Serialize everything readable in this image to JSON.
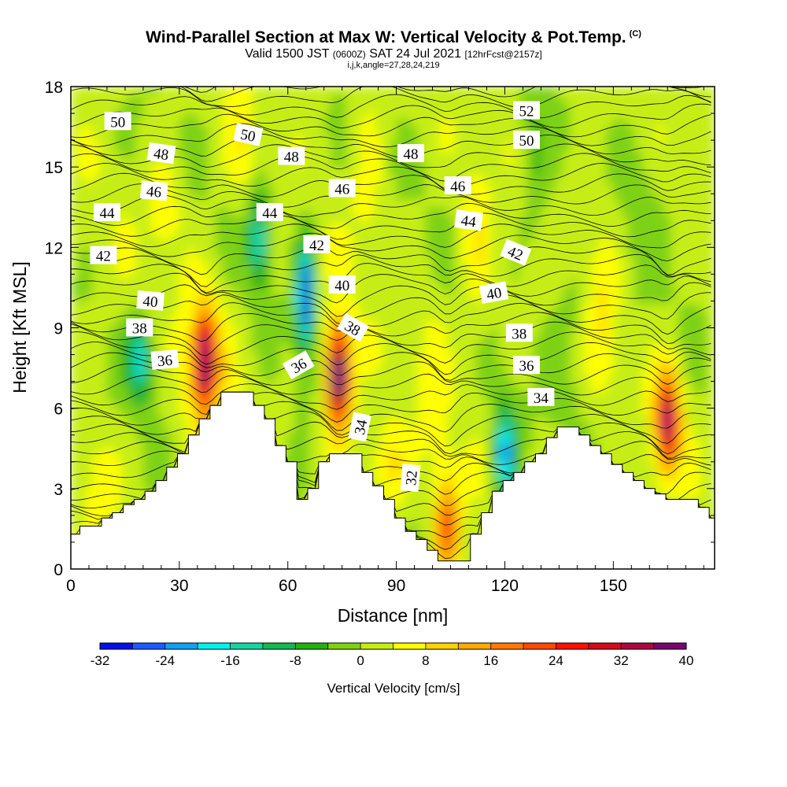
{
  "header": {
    "title": "Wind-Parallel Section at Max W: Vertical Velocity & Pot.Temp.",
    "copyright_tag": "(C)",
    "subtitle_valid": "Valid 1500 JST",
    "subtitle_utc": "(0600Z)",
    "subtitle_date": "SAT 24 Jul 2021",
    "subtitle_fcst": "[12hrFcst@2157z]",
    "subtitle_indices": "i,j,k,angle=27,28,24,219"
  },
  "chart_data": {
    "type": "heatmap",
    "title": "Wind-Parallel Section at Max W: Vertical Velocity & Pot.Temp.",
    "xlabel": "Distance [nm]",
    "ylabel": "Height [Kft MSL]",
    "xlim": [
      0,
      178
    ],
    "ylim": [
      0,
      18
    ],
    "xticks": [
      "0",
      "30",
      "60",
      "90",
      "120",
      "150"
    ],
    "xtick_values": [
      0,
      30,
      60,
      90,
      120,
      150
    ],
    "yticks": [
      "0",
      "3",
      "6",
      "9",
      "12",
      "15",
      "18"
    ],
    "ytick_values": [
      0,
      3,
      6,
      9,
      12,
      15,
      18
    ],
    "grid": false,
    "shaded_field": "Vertical Velocity [cm/s]",
    "contour_field": "Potential temperature",
    "contour_labels": [
      {
        "text": "50",
        "x": 13,
        "y": 16.7,
        "angle": 0
      },
      {
        "text": "48",
        "x": 25,
        "y": 15.5,
        "angle": 8
      },
      {
        "text": "46",
        "x": 23,
        "y": 14.1,
        "angle": 5
      },
      {
        "text": "44",
        "x": 10,
        "y": 13.3,
        "angle": 0
      },
      {
        "text": "42",
        "x": 9,
        "y": 11.7,
        "angle": 0
      },
      {
        "text": "40",
        "x": 22,
        "y": 10.0,
        "angle": 5
      },
      {
        "text": "38",
        "x": 19,
        "y": 9.0,
        "angle": 0
      },
      {
        "text": "36",
        "x": 26,
        "y": 7.8,
        "angle": -5
      },
      {
        "text": "50",
        "x": 49,
        "y": 16.2,
        "angle": 12
      },
      {
        "text": "48",
        "x": 61,
        "y": 15.4,
        "angle": 0
      },
      {
        "text": "46",
        "x": 75,
        "y": 14.2,
        "angle": 0
      },
      {
        "text": "44",
        "x": 55,
        "y": 13.3,
        "angle": 0
      },
      {
        "text": "42",
        "x": 68,
        "y": 12.1,
        "angle": 0
      },
      {
        "text": "40",
        "x": 75,
        "y": 10.6,
        "angle": 0
      },
      {
        "text": "38",
        "x": 78,
        "y": 9.0,
        "angle": 30
      },
      {
        "text": "36",
        "x": 63,
        "y": 7.6,
        "angle": -30
      },
      {
        "text": "34",
        "x": 80,
        "y": 5.3,
        "angle": -78
      },
      {
        "text": "32",
        "x": 94,
        "y": 3.4,
        "angle": -85
      },
      {
        "text": "52",
        "x": 126,
        "y": 17.1,
        "angle": 0
      },
      {
        "text": "50",
        "x": 126,
        "y": 16.0,
        "angle": 0
      },
      {
        "text": "48",
        "x": 94,
        "y": 15.5,
        "angle": 0
      },
      {
        "text": "46",
        "x": 107,
        "y": 14.3,
        "angle": 0
      },
      {
        "text": "44",
        "x": 110,
        "y": 13.0,
        "angle": 8
      },
      {
        "text": "42",
        "x": 123,
        "y": 11.8,
        "angle": 22
      },
      {
        "text": "40",
        "x": 117,
        "y": 10.3,
        "angle": -10
      },
      {
        "text": "38",
        "x": 124,
        "y": 8.8,
        "angle": 0
      },
      {
        "text": "36",
        "x": 126,
        "y": 7.6,
        "angle": 0
      },
      {
        "text": "34",
        "x": 130,
        "y": 6.4,
        "angle": 0
      }
    ],
    "color_bar": {
      "title": "Vertical Velocity [cm/s]",
      "tick_labels": [
        "-32",
        "-24",
        "-16",
        "-8",
        "0",
        "8",
        "16",
        "24",
        "32",
        "40"
      ],
      "levels": [
        -32,
        -28,
        -24,
        -20,
        -16,
        -12,
        -8,
        -4,
        0,
        4,
        8,
        12,
        16,
        20,
        24,
        28,
        32,
        36,
        40
      ],
      "colors": [
        "#0010e8",
        "#1a5cff",
        "#14a0f0",
        "#00f0f0",
        "#1ad2a0",
        "#16b650",
        "#24b012",
        "#7ed214",
        "#c6ee12",
        "#ffff00",
        "#ffd200",
        "#ffaa00",
        "#ff7a00",
        "#ff4a00",
        "#ff1200",
        "#d20c18",
        "#aa0a40",
        "#78086e"
      ]
    },
    "terrain_kft": [
      [
        0,
        1.3
      ],
      [
        2.5,
        1.6
      ],
      [
        8.5,
        1.9
      ],
      [
        11.5,
        2.1
      ],
      [
        14.5,
        2.4
      ],
      [
        17.5,
        2.6
      ],
      [
        20.5,
        2.9
      ],
      [
        23.5,
        3.3
      ],
      [
        26.5,
        3.8
      ],
      [
        29.5,
        4.3
      ],
      [
        32.5,
        5.0
      ],
      [
        35.5,
        5.6
      ],
      [
        38.5,
        6.1
      ],
      [
        41.5,
        6.6
      ],
      [
        44.5,
        6.6
      ],
      [
        47.5,
        6.6
      ],
      [
        50.5,
        6.1
      ],
      [
        53.5,
        5.6
      ],
      [
        56.5,
        4.6
      ],
      [
        59.5,
        4.0
      ],
      [
        62.5,
        2.6
      ],
      [
        65.5,
        3.0
      ],
      [
        68.5,
        4.0
      ],
      [
        71.5,
        4.3
      ],
      [
        74.5,
        4.3
      ],
      [
        77.5,
        4.3
      ],
      [
        80.5,
        3.6
      ],
      [
        83.5,
        3.1
      ],
      [
        86.5,
        2.6
      ],
      [
        89.5,
        1.9
      ],
      [
        92.5,
        1.4
      ],
      [
        95.5,
        1.1
      ],
      [
        98.5,
        0.7
      ],
      [
        101.5,
        0.3
      ],
      [
        104.5,
        0.3
      ],
      [
        107.5,
        0.3
      ],
      [
        110.5,
        1.3
      ],
      [
        113.5,
        2.1
      ],
      [
        116.5,
        2.9
      ],
      [
        119.5,
        3.3
      ],
      [
        122.5,
        3.6
      ],
      [
        125.5,
        4.0
      ],
      [
        128.5,
        4.3
      ],
      [
        131.5,
        4.9
      ],
      [
        134.5,
        5.3
      ],
      [
        137.5,
        5.3
      ],
      [
        140.5,
        5.0
      ],
      [
        143.5,
        4.6
      ],
      [
        146.5,
        4.3
      ],
      [
        149.5,
        3.9
      ],
      [
        152.5,
        3.6
      ],
      [
        155.5,
        3.3
      ],
      [
        158.5,
        3.0
      ],
      [
        161.5,
        2.8
      ],
      [
        164.5,
        2.6
      ],
      [
        167.5,
        2.6
      ],
      [
        170.5,
        2.6
      ],
      [
        173.5,
        2.3
      ],
      [
        176.5,
        1.9
      ],
      [
        178,
        1.9
      ]
    ],
    "updraft_cores": [
      {
        "x": 37,
        "z": 7.8,
        "max_cm_s": 34
      },
      {
        "x": 74,
        "z": 7.2,
        "max_cm_s": 40
      },
      {
        "x": 165,
        "z": 5.5,
        "max_cm_s": 28
      },
      {
        "x": 104,
        "z": 1.5,
        "max_cm_s": 16
      }
    ],
    "downdraft_cores": [
      {
        "x": 65,
        "z": 10.2,
        "min_cm_s": -28
      },
      {
        "x": 120,
        "z": 4.3,
        "min_cm_s": -20
      },
      {
        "x": 52,
        "z": 12.3,
        "min_cm_s": -16
      },
      {
        "x": 19,
        "z": 7.8,
        "min_cm_s": -14
      }
    ]
  }
}
